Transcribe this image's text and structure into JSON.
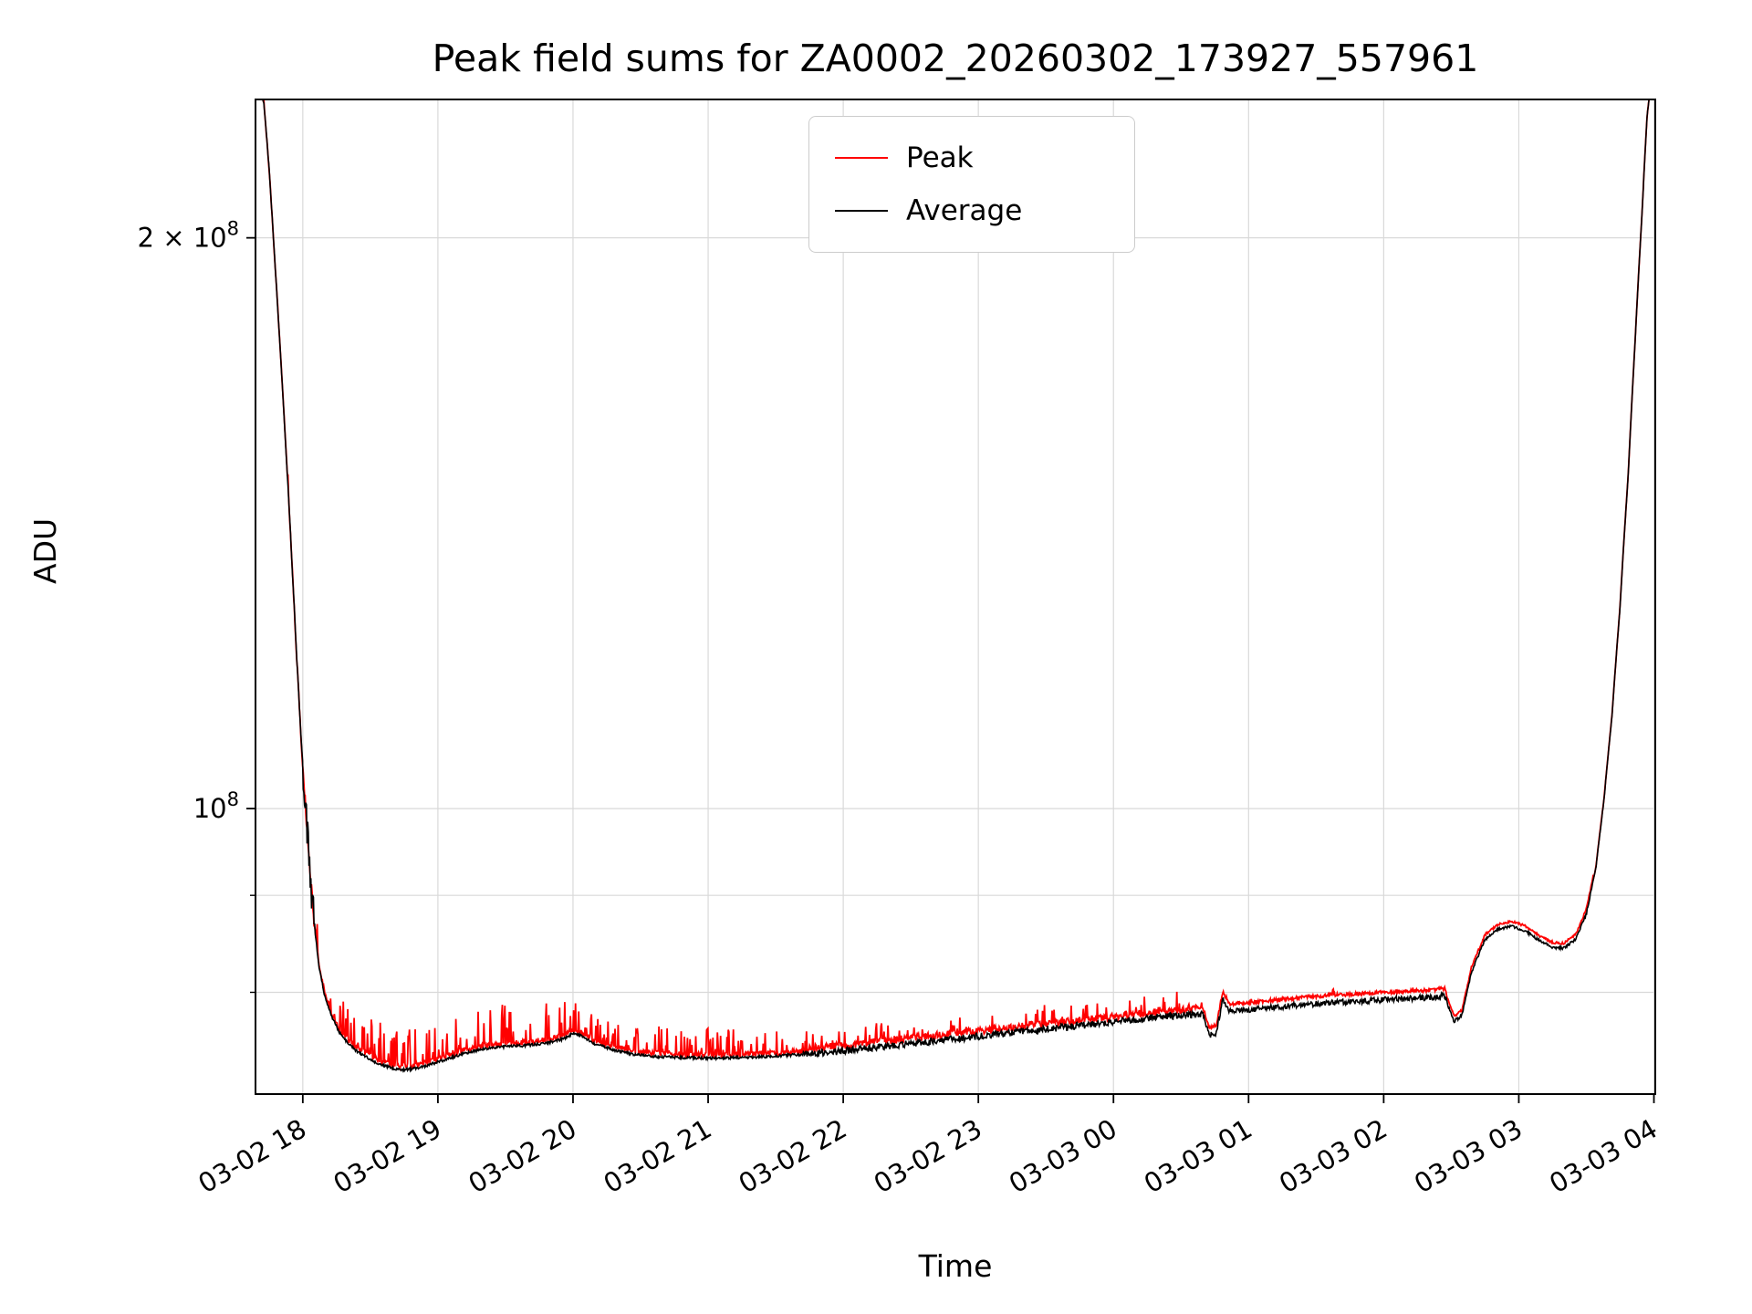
{
  "page": {
    "background": "#ffffff"
  },
  "chart_data": {
    "type": "line",
    "title": "Peak field sums for ZA0002_20260302_173927_557961",
    "xlabel": "Time",
    "ylabel": "ADU",
    "yscale": "log",
    "grid": true,
    "legend": {
      "position": "upper center",
      "entries": [
        "Peak",
        "Average"
      ]
    },
    "ylim": [
      70700000,
      236600000
    ],
    "xlim_hours": [
      17.65,
      28.01
    ],
    "x_ticks": [
      {
        "hour": 18,
        "label": "03-02 18"
      },
      {
        "hour": 19,
        "label": "03-02 19"
      },
      {
        "hour": 20,
        "label": "03-02 20"
      },
      {
        "hour": 21,
        "label": "03-02 21"
      },
      {
        "hour": 22,
        "label": "03-02 22"
      },
      {
        "hour": 23,
        "label": "03-02 23"
      },
      {
        "hour": 24,
        "label": "03-03 00"
      },
      {
        "hour": 25,
        "label": "03-03 01"
      },
      {
        "hour": 26,
        "label": "03-03 02"
      },
      {
        "hour": 27,
        "label": "03-03 03"
      },
      {
        "hour": 28,
        "label": "03-03 04"
      }
    ],
    "y_major_ticks": [
      {
        "value": 200000000,
        "base": "2 × 10",
        "exp": "8"
      },
      {
        "value": 100000000,
        "base": "10",
        "exp": "8"
      }
    ],
    "y_minor_gridlines": [
      80000000,
      90000000
    ],
    "series": [
      {
        "name": "Peak",
        "color": "#ff0000",
        "linewidth": 1.8,
        "role": "peak"
      },
      {
        "name": "Average",
        "color": "#000000",
        "linewidth": 1.6,
        "role": "average"
      }
    ],
    "baseline_anchors_hour_vs_million_adu": [
      [
        17.66,
        240
      ],
      [
        17.71,
        236
      ],
      [
        17.75,
        218
      ],
      [
        17.79,
        196
      ],
      [
        17.83,
        176
      ],
      [
        17.87,
        157
      ],
      [
        17.91,
        139
      ],
      [
        17.95,
        122
      ],
      [
        17.99,
        108
      ],
      [
        18.02,
        100
      ],
      [
        18.05,
        93
      ],
      [
        18.08,
        87.5
      ],
      [
        18.12,
        82.5
      ],
      [
        18.16,
        79.8
      ],
      [
        18.21,
        77.8
      ],
      [
        18.27,
        76.2
      ],
      [
        18.34,
        75.1
      ],
      [
        18.42,
        74.3
      ],
      [
        18.52,
        73.6
      ],
      [
        18.62,
        73.1
      ],
      [
        18.72,
        72.8
      ],
      [
        18.82,
        72.9
      ],
      [
        18.92,
        73.2
      ],
      [
        19.05,
        73.7
      ],
      [
        19.2,
        74.3
      ],
      [
        19.35,
        74.7
      ],
      [
        19.5,
        74.9
      ],
      [
        19.65,
        75.0
      ],
      [
        19.8,
        75.2
      ],
      [
        19.93,
        75.6
      ],
      [
        20.0,
        76.1
      ],
      [
        20.06,
        75.9
      ],
      [
        20.15,
        75.2
      ],
      [
        20.3,
        74.6
      ],
      [
        20.45,
        74.2
      ],
      [
        20.6,
        74.0
      ],
      [
        20.8,
        73.9
      ],
      [
        21.0,
        73.85
      ],
      [
        21.2,
        73.9
      ],
      [
        21.45,
        74.0
      ],
      [
        21.7,
        74.2
      ],
      [
        22.0,
        74.5
      ],
      [
        22.3,
        74.9
      ],
      [
        22.6,
        75.3
      ],
      [
        22.9,
        75.7
      ],
      [
        23.2,
        76.1
      ],
      [
        23.5,
        76.5
      ],
      [
        23.8,
        76.9
      ],
      [
        24.1,
        77.3
      ],
      [
        24.4,
        77.7
      ],
      [
        24.6,
        77.9
      ],
      [
        24.66,
        77.9
      ],
      [
        24.71,
        75.9
      ],
      [
        24.76,
        76.2
      ],
      [
        24.81,
        79.3
      ],
      [
        24.86,
        78.2
      ],
      [
        25.0,
        78.3
      ],
      [
        25.3,
        78.7
      ],
      [
        25.6,
        79.0
      ],
      [
        25.9,
        79.2
      ],
      [
        26.15,
        79.4
      ],
      [
        26.35,
        79.5
      ],
      [
        26.45,
        79.7
      ],
      [
        26.52,
        77.2
      ],
      [
        26.58,
        77.8
      ],
      [
        26.65,
        82.0
      ],
      [
        26.75,
        85.3
      ],
      [
        26.85,
        86.4
      ],
      [
        26.95,
        86.7
      ],
      [
        27.05,
        86.2
      ],
      [
        27.15,
        85.2
      ],
      [
        27.25,
        84.5
      ],
      [
        27.33,
        84.4
      ],
      [
        27.42,
        85.3
      ],
      [
        27.5,
        88.0
      ],
      [
        27.57,
        93.0
      ],
      [
        27.63,
        101
      ],
      [
        27.69,
        112
      ],
      [
        27.75,
        128
      ],
      [
        27.81,
        150
      ],
      [
        27.86,
        176
      ],
      [
        27.91,
        205
      ],
      [
        27.95,
        232
      ],
      [
        27.98,
        242
      ]
    ],
    "peak_regions_t0_t1_offset_band_spikeprob_spikeamp": [
      [
        17.65,
        18.09,
        0.0,
        0.4,
        0.06,
        2.0
      ],
      [
        18.09,
        20.05,
        0.3,
        0.25,
        0.22,
        3.4
      ],
      [
        20.05,
        21.75,
        0.3,
        0.25,
        0.2,
        2.4
      ],
      [
        21.75,
        24.58,
        0.5,
        0.35,
        0.12,
        1.8
      ],
      [
        24.58,
        26.47,
        0.7,
        0.18,
        0.02,
        0.8
      ],
      [
        26.47,
        27.55,
        0.5,
        0.12,
        0.0,
        0.5
      ],
      [
        27.55,
        28.05,
        0.1,
        0.05,
        0.0,
        0.0
      ]
    ],
    "average_noise_regions_t0_t1_amp": [
      [
        17.65,
        18.0,
        0.3
      ],
      [
        18.0,
        18.09,
        2.2
      ],
      [
        18.09,
        21.7,
        0.12
      ],
      [
        21.7,
        24.58,
        0.32
      ],
      [
        24.58,
        26.47,
        0.28
      ],
      [
        26.47,
        27.55,
        0.15
      ],
      [
        27.55,
        28.05,
        0.15
      ]
    ],
    "grid_color": "#d9d9d9",
    "spine_color": "#000000"
  }
}
